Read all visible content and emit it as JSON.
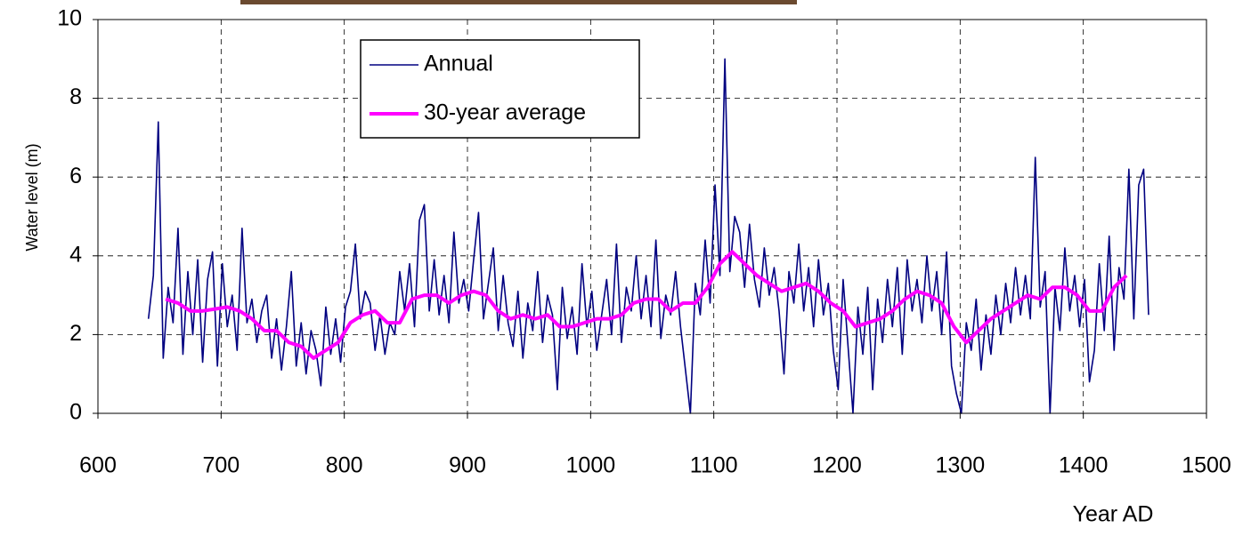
{
  "chart_data": {
    "type": "line",
    "x_label": "Year AD",
    "y_label": "Water level (m)",
    "xlim": [
      600,
      1500
    ],
    "xticks": [
      600,
      700,
      800,
      900,
      1000,
      1100,
      1200,
      1300,
      1400,
      1500
    ],
    "ylim": [
      0,
      10
    ],
    "yticks": [
      0,
      2,
      4,
      6,
      8,
      10
    ],
    "grid": true,
    "legend": "top",
    "series": [
      {
        "name": "Annual",
        "color": "#000080",
        "x": [
          641,
          645,
          649,
          653,
          657,
          661,
          665,
          669,
          673,
          677,
          681,
          685,
          689,
          693,
          697,
          701,
          705,
          709,
          713,
          717,
          721,
          725,
          729,
          733,
          737,
          741,
          745,
          749,
          753,
          757,
          761,
          765,
          769,
          773,
          777,
          781,
          785,
          789,
          793,
          797,
          801,
          805,
          809,
          813,
          817,
          821,
          825,
          829,
          833,
          837,
          841,
          845,
          849,
          853,
          857,
          861,
          865,
          869,
          873,
          877,
          881,
          885,
          889,
          893,
          897,
          901,
          905,
          909,
          913,
          917,
          921,
          925,
          929,
          933,
          937,
          941,
          945,
          949,
          953,
          957,
          961,
          965,
          969,
          973,
          977,
          981,
          985,
          989,
          993,
          997,
          1001,
          1005,
          1009,
          1013,
          1017,
          1021,
          1025,
          1029,
          1033,
          1037,
          1041,
          1045,
          1049,
          1053,
          1057,
          1061,
          1065,
          1069,
          1073,
          1077,
          1081,
          1085,
          1089,
          1093,
          1097,
          1101,
          1105,
          1109,
          1113,
          1117,
          1121,
          1125,
          1129,
          1133,
          1137,
          1141,
          1145,
          1149,
          1153,
          1157,
          1161,
          1165,
          1169,
          1173,
          1177,
          1181,
          1185,
          1189,
          1193,
          1197,
          1201,
          1205,
          1209,
          1213,
          1217,
          1221,
          1225,
          1229,
          1233,
          1237,
          1241,
          1245,
          1249,
          1253,
          1257,
          1261,
          1265,
          1269,
          1273,
          1277,
          1281,
          1285,
          1289,
          1293,
          1297,
          1301,
          1305,
          1309,
          1313,
          1317,
          1321,
          1325,
          1329,
          1333,
          1337,
          1341,
          1345,
          1349,
          1353,
          1357,
          1361,
          1365,
          1369,
          1373,
          1377,
          1381,
          1385,
          1389,
          1393,
          1397,
          1401,
          1405,
          1409,
          1413,
          1417,
          1421,
          1425,
          1429,
          1433,
          1437,
          1441,
          1445,
          1449,
          1453
        ],
        "values": [
          2.4,
          3.5,
          7.4,
          1.4,
          3.2,
          2.3,
          4.7,
          1.5,
          3.6,
          2.0,
          3.9,
          1.3,
          3.4,
          4.1,
          1.2,
          3.8,
          2.2,
          3.0,
          1.6,
          4.7,
          2.3,
          2.9,
          1.8,
          2.6,
          3.0,
          1.4,
          2.4,
          1.1,
          2.2,
          3.6,
          1.2,
          2.3,
          1.0,
          2.1,
          1.6,
          0.7,
          2.7,
          1.5,
          2.4,
          1.3,
          2.7,
          3.1,
          4.3,
          2.4,
          3.1,
          2.8,
          1.6,
          2.5,
          1.5,
          2.3,
          2.0,
          3.6,
          2.6,
          3.8,
          2.2,
          4.9,
          5.3,
          2.6,
          3.9,
          2.5,
          3.5,
          2.3,
          4.6,
          2.8,
          3.4,
          2.6,
          3.9,
          5.1,
          2.4,
          3.3,
          4.2,
          2.1,
          3.5,
          2.3,
          1.7,
          3.1,
          1.4,
          2.8,
          2.1,
          3.6,
          1.8,
          3.0,
          2.5,
          0.6,
          3.2,
          1.9,
          2.7,
          1.5,
          3.8,
          2.2,
          3.1,
          1.6,
          2.5,
          3.4,
          2.0,
          4.3,
          1.8,
          3.2,
          2.6,
          4.0,
          2.4,
          3.5,
          2.2,
          4.4,
          1.9,
          3.0,
          2.5,
          3.6,
          2.2,
          1.1,
          0,
          3.3,
          2.5,
          4.4,
          2.8,
          5.8,
          3.5,
          9.0,
          3.6,
          5.0,
          4.6,
          3.2,
          4.8,
          3.4,
          2.7,
          4.2,
          3.0,
          3.7,
          2.6,
          1.0,
          3.6,
          2.8,
          4.3,
          2.6,
          3.7,
          2.2,
          3.9,
          2.5,
          3.3,
          1.6,
          0.6,
          3.4,
          1.7,
          0,
          2.7,
          1.5,
          3.2,
          0.6,
          2.9,
          1.8,
          3.4,
          2.2,
          3.7,
          1.5,
          3.9,
          2.6,
          3.4,
          2.3,
          4.0,
          2.6,
          3.6,
          2.0,
          4.1,
          1.2,
          0.5,
          0,
          2.3,
          1.6,
          2.9,
          1.1,
          2.5,
          1.5,
          3.0,
          2.0,
          3.3,
          2.3,
          3.7,
          2.5,
          3.5,
          2.4,
          6.5,
          2.7,
          3.6,
          0,
          3.2,
          2.1,
          4.2,
          2.6,
          3.5,
          2.2,
          3.4,
          0.8,
          1.6,
          3.8,
          2.1,
          4.5,
          1.6,
          3.7,
          2.9,
          6.2,
          2.4,
          5.8,
          6.2,
          2.5
        ]
      },
      {
        "name": "30-year average",
        "color": "#ff00ff",
        "x": [
          655,
          665,
          675,
          685,
          695,
          705,
          715,
          725,
          735,
          745,
          755,
          765,
          775,
          785,
          795,
          805,
          815,
          825,
          835,
          845,
          855,
          865,
          875,
          885,
          895,
          905,
          915,
          925,
          935,
          945,
          955,
          965,
          975,
          985,
          995,
          1005,
          1015,
          1025,
          1035,
          1045,
          1055,
          1065,
          1075,
          1085,
          1095,
          1105,
          1115,
          1125,
          1135,
          1145,
          1155,
          1165,
          1175,
          1185,
          1195,
          1205,
          1215,
          1225,
          1235,
          1245,
          1255,
          1265,
          1275,
          1285,
          1295,
          1305,
          1315,
          1325,
          1335,
          1345,
          1355,
          1365,
          1375,
          1385,
          1395,
          1405,
          1415,
          1425,
          1435
        ],
        "values": [
          2.9,
          2.8,
          2.6,
          2.6,
          2.65,
          2.7,
          2.6,
          2.4,
          2.1,
          2.1,
          1.8,
          1.7,
          1.4,
          1.6,
          1.8,
          2.3,
          2.5,
          2.6,
          2.3,
          2.3,
          2.9,
          3.0,
          3.0,
          2.8,
          3.0,
          3.1,
          3.0,
          2.6,
          2.4,
          2.5,
          2.4,
          2.5,
          2.2,
          2.2,
          2.3,
          2.4,
          2.4,
          2.5,
          2.8,
          2.9,
          2.9,
          2.6,
          2.8,
          2.8,
          3.2,
          3.8,
          4.1,
          3.8,
          3.5,
          3.3,
          3.1,
          3.2,
          3.3,
          3.1,
          2.8,
          2.6,
          2.2,
          2.3,
          2.4,
          2.6,
          2.9,
          3.1,
          3.0,
          2.8,
          2.2,
          1.8,
          2.1,
          2.4,
          2.6,
          2.8,
          3.0,
          2.9,
          3.2,
          3.2,
          3.0,
          2.6,
          2.6,
          3.2,
          3.5
        ]
      }
    ]
  }
}
